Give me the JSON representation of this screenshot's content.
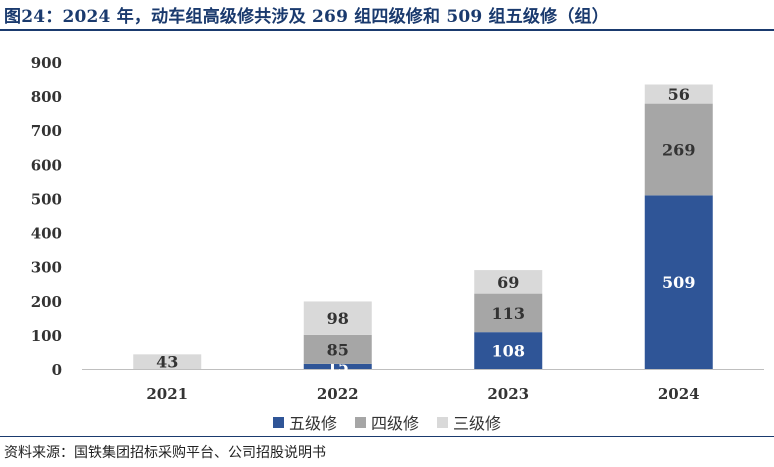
{
  "title": "图24：2024 年，动车组高级修共涉及 269 组四级修和 509 组五级修（组）",
  "source": "资料来源：国铁集团招标采购平台、公司招股说明书",
  "chart_data": {
    "type": "bar",
    "stacked": true,
    "categories": [
      "2021",
      "2022",
      "2023",
      "2024"
    ],
    "series": [
      {
        "name": "五级修",
        "values": [
          0,
          15,
          108,
          509
        ],
        "labels": [
          "",
          "15",
          "108",
          "509"
        ],
        "color": "#2f5597",
        "label_color": "#ffffff"
      },
      {
        "name": "四级修",
        "values": [
          0,
          85,
          113,
          269
        ],
        "labels": [
          "",
          "85",
          "113",
          "269"
        ],
        "color": "#a6a6a6",
        "label_color": "#333333"
      },
      {
        "name": "三级修",
        "values": [
          43,
          98,
          69,
          56
        ],
        "labels": [
          "43",
          "98",
          "69",
          "56"
        ],
        "color": "#d9d9d9",
        "label_color": "#333333"
      }
    ],
    "y_ticks": [
      "0",
      "100",
      "200",
      "300",
      "400",
      "500",
      "600",
      "700",
      "800",
      "900"
    ],
    "ylim": [
      0,
      900
    ],
    "grid": false,
    "legend_position": "bottom"
  }
}
